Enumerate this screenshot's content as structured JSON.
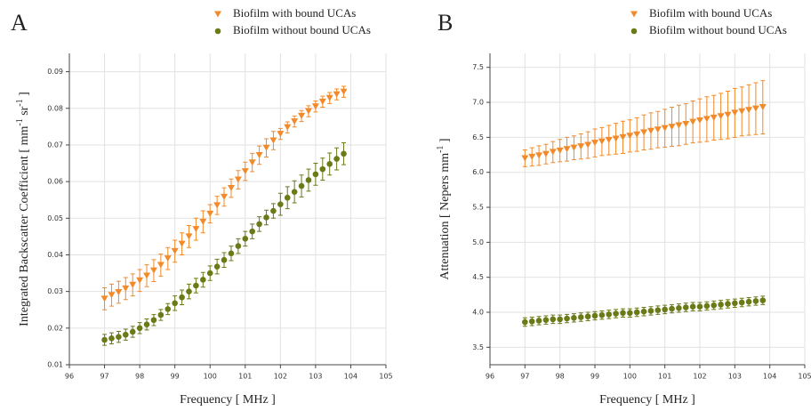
{
  "chart_data": [
    {
      "type": "scatter",
      "label": "A",
      "xlabel": "Frequency [ MHz ]",
      "ylabel_parts": [
        {
          "text": "Integrated Backscatter Coefficient [ mm"
        },
        {
          "text": "-1",
          "sup": true
        },
        {
          "text": " sr"
        },
        {
          "text": "-1",
          "sup": true
        },
        {
          "text": " ]"
        }
      ],
      "xlim": [
        96,
        105
      ],
      "xticks": [
        96,
        97,
        98,
        99,
        100,
        101,
        102,
        103,
        104,
        105
      ],
      "ylim": [
        0.01,
        0.095
      ],
      "yticks": [
        0.01,
        0.02,
        0.03,
        0.04,
        0.05,
        0.06,
        0.07,
        0.08,
        0.09
      ],
      "grid": true,
      "x": [
        97.0,
        97.2,
        97.4,
        97.6,
        97.8,
        98.0,
        98.2,
        98.4,
        98.6,
        98.8,
        99.0,
        99.2,
        99.4,
        99.6,
        99.8,
        100.0,
        100.2,
        100.4,
        100.6,
        100.8,
        101.0,
        101.2,
        101.4,
        101.6,
        101.8,
        102.0,
        102.2,
        102.4,
        102.6,
        102.8,
        103.0,
        103.2,
        103.4,
        103.6,
        103.8
      ],
      "series": [
        {
          "name": "Biofilm with bound UCAs",
          "color": "#f28a2a",
          "marker": "triangle-down",
          "values": [
            0.028,
            0.029,
            0.0298,
            0.0308,
            0.0318,
            0.033,
            0.0343,
            0.0357,
            0.0372,
            0.039,
            0.041,
            0.043,
            0.045,
            0.047,
            0.049,
            0.0512,
            0.0535,
            0.0558,
            0.0582,
            0.0605,
            0.0628,
            0.0652,
            0.0672,
            0.0692,
            0.0712,
            0.073,
            0.0748,
            0.0764,
            0.0779,
            0.0792,
            0.0805,
            0.0818,
            0.0828,
            0.0838,
            0.0845
          ],
          "errors": [
            0.003,
            0.003,
            0.003,
            0.003,
            0.003,
            0.003,
            0.003,
            0.003,
            0.003,
            0.003,
            0.003,
            0.003,
            0.003,
            0.003,
            0.003,
            0.0025,
            0.0025,
            0.0025,
            0.0025,
            0.0025,
            0.0025,
            0.0025,
            0.0025,
            0.0025,
            0.0025,
            0.0015,
            0.0015,
            0.0015,
            0.0015,
            0.0015,
            0.0015,
            0.0015,
            0.0015,
            0.0015,
            0.0015
          ]
        },
        {
          "name": "Biofilm without bound UCAs",
          "color": "#6b7a17",
          "marker": "circle",
          "values": [
            0.0168,
            0.0172,
            0.0176,
            0.0182,
            0.019,
            0.02,
            0.021,
            0.0222,
            0.0236,
            0.0252,
            0.0268,
            0.0284,
            0.03,
            0.0316,
            0.0332,
            0.035,
            0.0368,
            0.0386,
            0.0404,
            0.0424,
            0.0444,
            0.0464,
            0.0484,
            0.0502,
            0.052,
            0.0538,
            0.0556,
            0.0572,
            0.0588,
            0.0604,
            0.062,
            0.0634,
            0.0648,
            0.0662,
            0.0676
          ],
          "errors": [
            0.0015,
            0.0015,
            0.0015,
            0.0015,
            0.0015,
            0.0015,
            0.0015,
            0.0015,
            0.0015,
            0.0015,
            0.002,
            0.002,
            0.002,
            0.002,
            0.002,
            0.002,
            0.002,
            0.002,
            0.002,
            0.002,
            0.002,
            0.002,
            0.002,
            0.002,
            0.002,
            0.003,
            0.003,
            0.003,
            0.003,
            0.003,
            0.003,
            0.003,
            0.003,
            0.003,
            0.003
          ]
        }
      ]
    },
    {
      "type": "scatter",
      "label": "B",
      "xlabel": "Frequency [ MHz ]",
      "ylabel_parts": [
        {
          "text": "Attenuation [ Nepers mm"
        },
        {
          "text": "-1",
          "sup": true
        },
        {
          "text": " ]"
        }
      ],
      "xlim": [
        96,
        105
      ],
      "xticks": [
        96,
        97,
        98,
        99,
        100,
        101,
        102,
        103,
        104,
        105
      ],
      "ylim": [
        3.25,
        7.7
      ],
      "yticks": [
        3.5,
        {
          "value": 4,
          "label": "4.0"
        },
        4.5,
        {
          "value": 5,
          "label": "5.0"
        },
        5.5,
        {
          "value": 6,
          "label": "6.0"
        },
        6.5,
        {
          "value": 7,
          "label": "7.0"
        },
        7.5
      ],
      "grid": true,
      "x": [
        97.0,
        97.2,
        97.4,
        97.6,
        97.8,
        98.0,
        98.2,
        98.4,
        98.6,
        98.8,
        99.0,
        99.2,
        99.4,
        99.6,
        99.8,
        100.0,
        100.2,
        100.4,
        100.6,
        100.8,
        101.0,
        101.2,
        101.4,
        101.6,
        101.8,
        102.0,
        102.2,
        102.4,
        102.6,
        102.8,
        103.0,
        103.2,
        103.4,
        103.6,
        103.8
      ],
      "series": [
        {
          "name": "Biofilm with bound UCAs",
          "color": "#f28a2a",
          "marker": "triangle-down",
          "values": [
            6.2,
            6.22,
            6.24,
            6.26,
            6.29,
            6.31,
            6.33,
            6.35,
            6.37,
            6.39,
            6.42,
            6.44,
            6.46,
            6.48,
            6.5,
            6.52,
            6.54,
            6.57,
            6.59,
            6.61,
            6.63,
            6.65,
            6.67,
            6.69,
            6.72,
            6.74,
            6.76,
            6.78,
            6.8,
            6.82,
            6.85,
            6.87,
            6.89,
            6.91,
            6.93
          ],
          "errors": [
            0.12,
            0.13,
            0.14,
            0.14,
            0.15,
            0.16,
            0.17,
            0.17,
            0.18,
            0.19,
            0.2,
            0.2,
            0.21,
            0.22,
            0.23,
            0.23,
            0.24,
            0.25,
            0.26,
            0.26,
            0.27,
            0.28,
            0.29,
            0.29,
            0.3,
            0.31,
            0.32,
            0.32,
            0.33,
            0.34,
            0.35,
            0.35,
            0.36,
            0.37,
            0.38
          ]
        },
        {
          "name": "Biofilm without bound UCAs",
          "color": "#6b7a17",
          "marker": "circle",
          "values": [
            3.86,
            3.87,
            3.88,
            3.89,
            3.9,
            3.9,
            3.91,
            3.92,
            3.93,
            3.94,
            3.95,
            3.96,
            3.97,
            3.98,
            3.99,
            3.99,
            4.0,
            4.01,
            4.02,
            4.03,
            4.04,
            4.05,
            4.06,
            4.07,
            4.08,
            4.08,
            4.09,
            4.1,
            4.11,
            4.12,
            4.13,
            4.14,
            4.15,
            4.16,
            4.17
          ],
          "errors": [
            0.06,
            0.06,
            0.06,
            0.06,
            0.06,
            0.06,
            0.06,
            0.06,
            0.06,
            0.06,
            0.06,
            0.06,
            0.06,
            0.06,
            0.06,
            0.06,
            0.06,
            0.06,
            0.06,
            0.06,
            0.06,
            0.06,
            0.06,
            0.06,
            0.06,
            0.06,
            0.06,
            0.06,
            0.06,
            0.06,
            0.06,
            0.06,
            0.06,
            0.06,
            0.06
          ]
        }
      ]
    }
  ]
}
